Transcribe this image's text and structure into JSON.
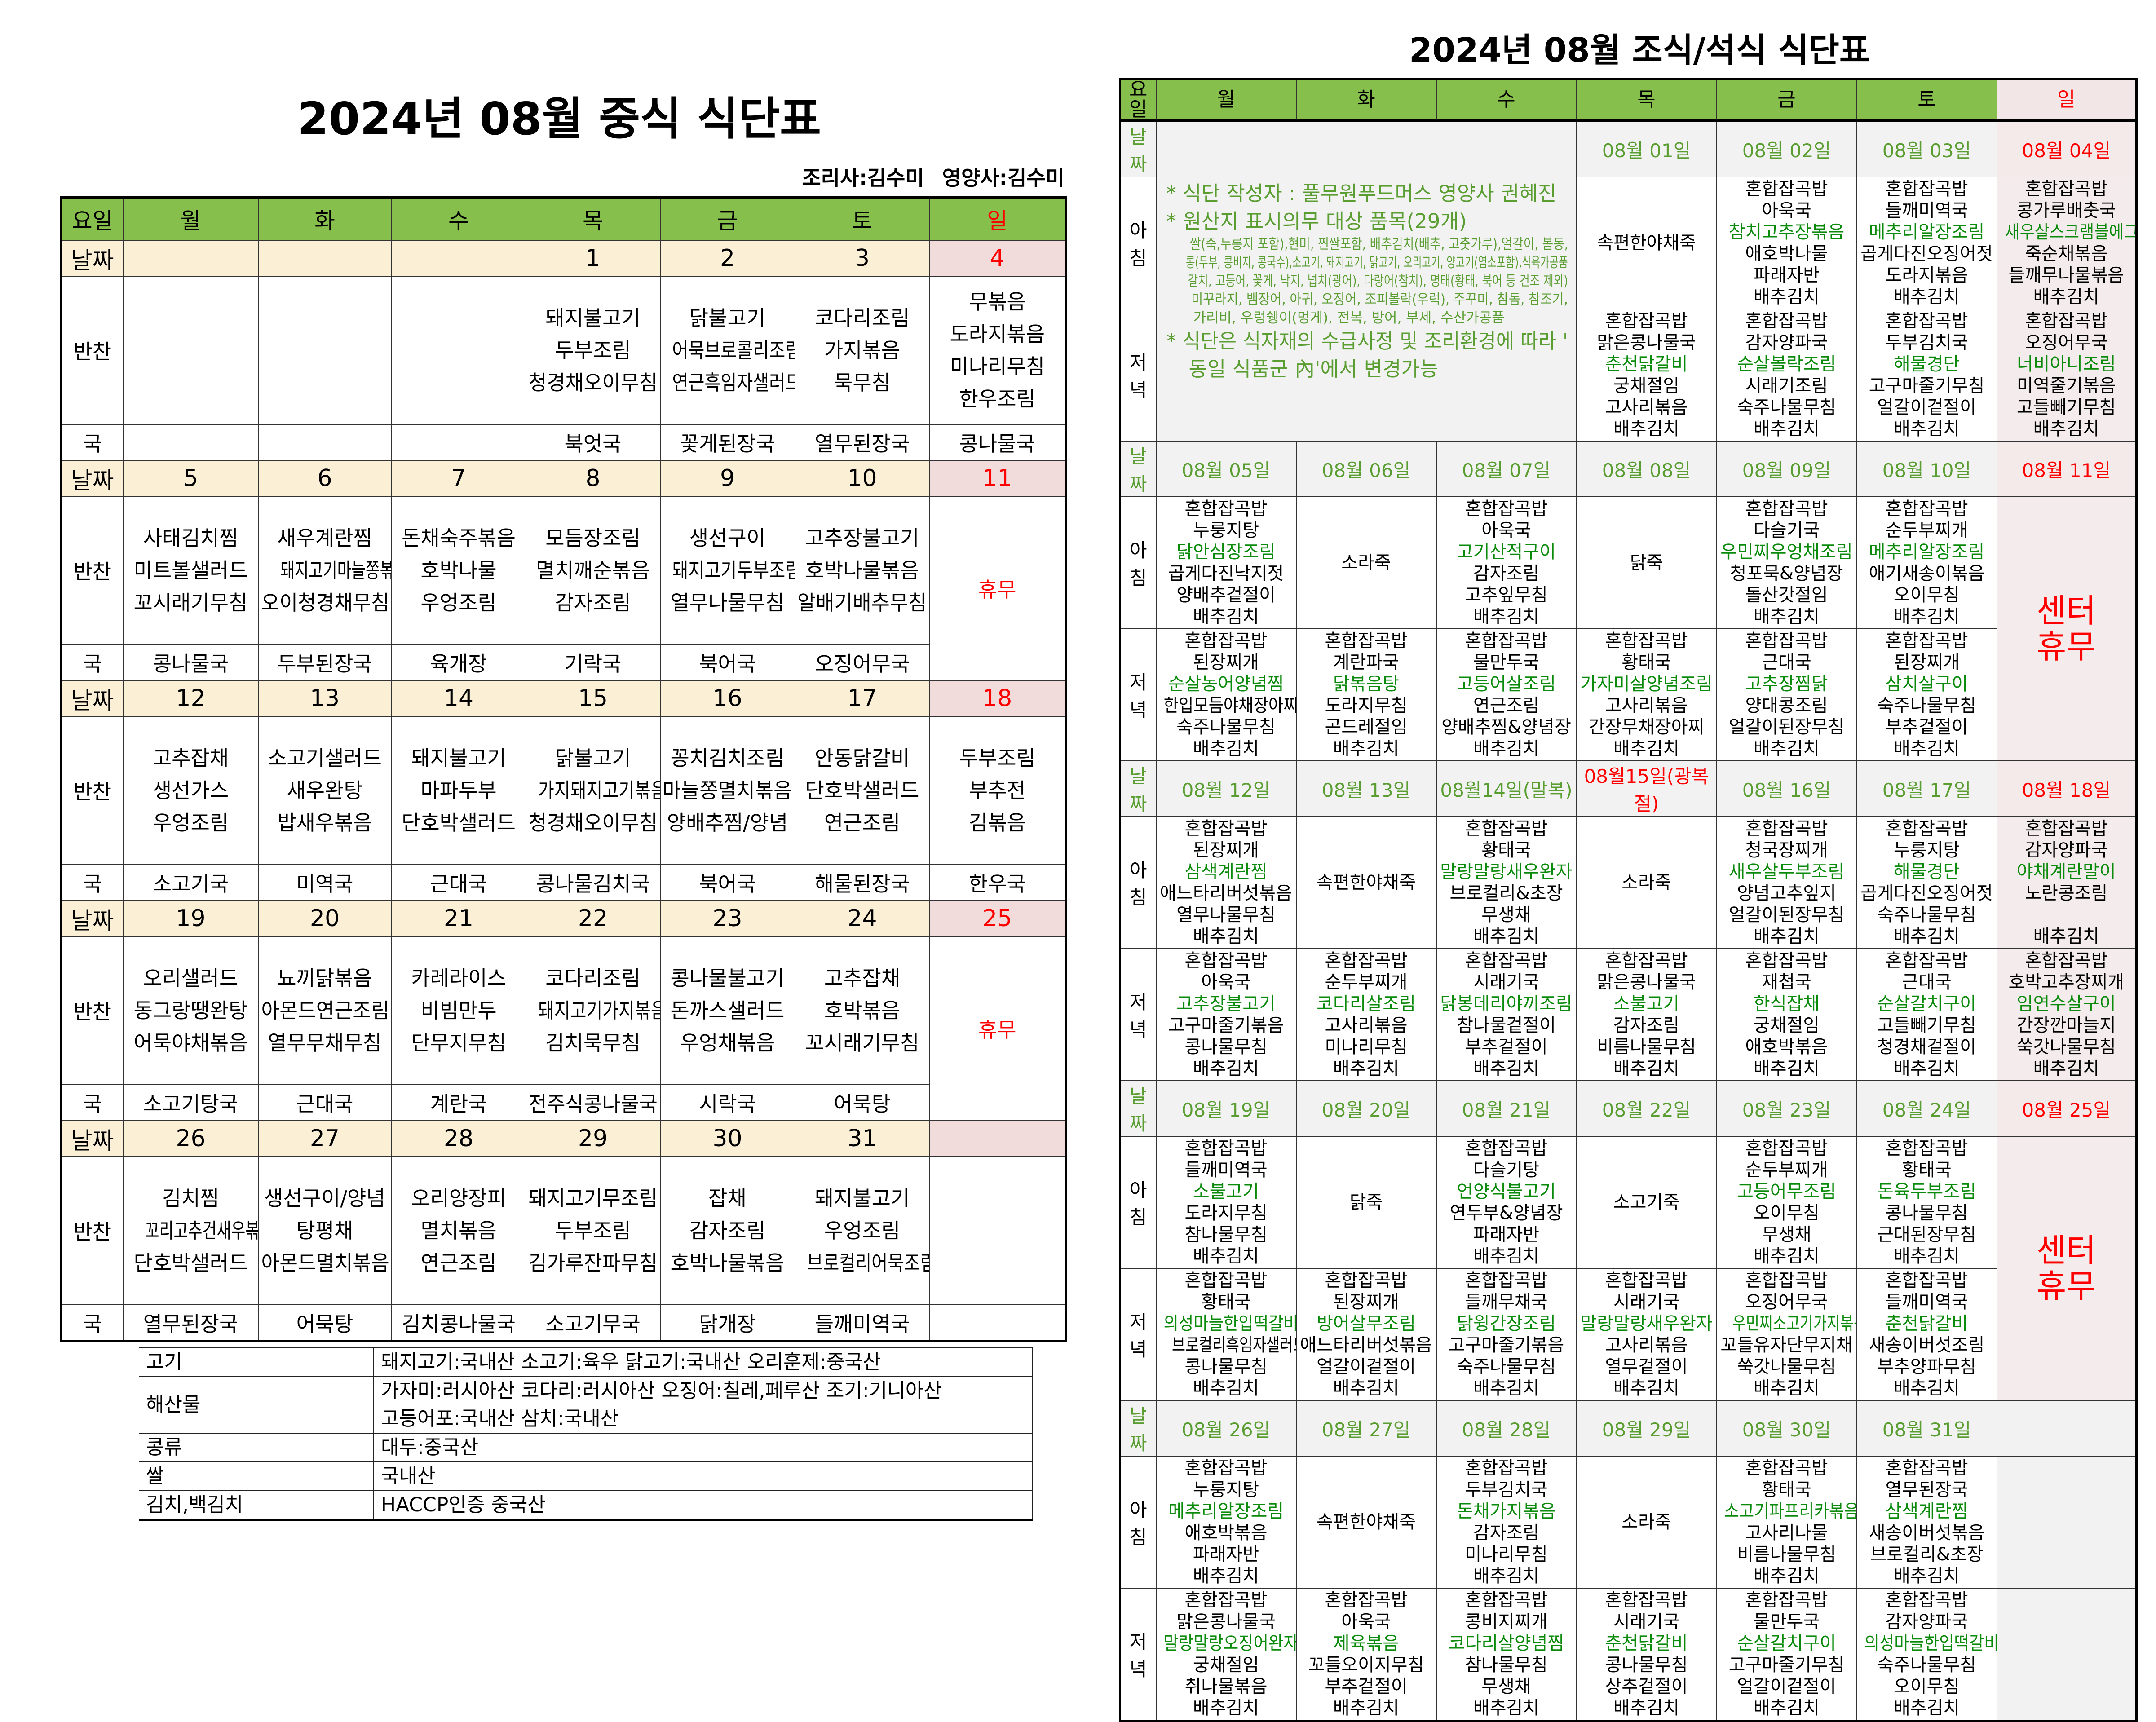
{
  "lunch": {
    "title": "2024년 08월 중식 식단표",
    "staff": {
      "cook": "조리사:김수미",
      "dietitian": "영양사:김수미"
    },
    "header": {
      "label": "요일",
      "days": [
        "월",
        "화",
        "수",
        "목",
        "금",
        "토",
        "일"
      ]
    },
    "row_labels": {
      "date": "날짜",
      "sides": "반찬",
      "soup": "국"
    },
    "holiday_text": "휴무",
    "weeks": [
      {
        "dates": [
          "",
          "",
          "",
          "1",
          "2",
          "3",
          "4"
        ],
        "sides": [
          [],
          [],
          [],
          [
            "돼지불고기",
            "두부조림",
            "청경채오이무침"
          ],
          [
            "닭불고기",
            "어묵브로콜리조림",
            "연근흑임자샐러드"
          ],
          [
            "코다리조림",
            "가지볶음",
            "묵무침"
          ],
          [
            "무볶음",
            "도라지볶음",
            "미나리무침",
            "한우조림"
          ]
        ],
        "soups": [
          "",
          "",
          "",
          "북엇국",
          "꽃게된장국",
          "열무된장국",
          "콩나물국"
        ],
        "holiday": false
      },
      {
        "dates": [
          "5",
          "6",
          "7",
          "8",
          "9",
          "10",
          "11"
        ],
        "sides": [
          [
            "사태김치찜",
            "미트볼샐러드",
            "꼬시래기무침"
          ],
          [
            "새우계란찜",
            "돼지고기마늘쫑볶음",
            "오이청경채무침"
          ],
          [
            "돈채숙주볶음",
            "호박나물",
            "우엉조림"
          ],
          [
            "모듬장조림",
            "멸치깨순볶음",
            "감자조림"
          ],
          [
            "생선구이",
            "돼지고기두부조림",
            "열무나물무침"
          ],
          [
            "고추장불고기",
            "호박나물볶음",
            "알배기배추무침"
          ],
          []
        ],
        "soups": [
          "콩나물국",
          "두부된장국",
          "육개장",
          "기락국",
          "북어국",
          "오징어무국",
          ""
        ],
        "holiday": true
      },
      {
        "dates": [
          "12",
          "13",
          "14",
          "15",
          "16",
          "17",
          "18"
        ],
        "sides": [
          [
            "고추잡채",
            "생선가스",
            "우엉조림"
          ],
          [
            "소고기샐러드",
            "새우완탕",
            "밥새우볶음"
          ],
          [
            "돼지불고기",
            "마파두부",
            "단호박샐러드"
          ],
          [
            "닭불고기",
            "가지돼지고기볶음",
            "청경채오이무침"
          ],
          [
            "꽁치김치조림",
            "마늘쫑멸치볶음",
            "양배추찜/양념"
          ],
          [
            "안동닭갈비",
            "단호박샐러드",
            "연근조림"
          ],
          [
            "두부조림",
            "부추전",
            "김볶음"
          ]
        ],
        "soups": [
          "소고기국",
          "미역국",
          "근대국",
          "콩나물김치국",
          "북어국",
          "해물된장국",
          "한우국"
        ],
        "holiday": false
      },
      {
        "dates": [
          "19",
          "20",
          "21",
          "22",
          "23",
          "24",
          "25"
        ],
        "sides": [
          [
            "오리샐러드",
            "동그랑땡완탕",
            "어묵야채볶음"
          ],
          [
            "뇨끼닭볶음",
            "아몬드연근조림",
            "열무무채무침"
          ],
          [
            "카레라이스",
            "비빔만두",
            "단무지무침"
          ],
          [
            "코다리조림",
            "돼지고기가지볶음",
            "김치묵무침"
          ],
          [
            "콩나물불고기",
            "돈까스샐러드",
            "우엉채볶음"
          ],
          [
            "고추잡채",
            "호박볶음",
            "꼬시래기무침"
          ],
          []
        ],
        "soups": [
          "소고기탕국",
          "근대국",
          "계란국",
          "전주식콩나물국",
          "시락국",
          "어묵탕",
          ""
        ],
        "holiday": true
      },
      {
        "dates": [
          "26",
          "27",
          "28",
          "29",
          "30",
          "31",
          ""
        ],
        "sides": [
          [
            "김치찜",
            "꼬리고추건새우볶음",
            "단호박샐러드"
          ],
          [
            "생선구이/양념",
            "탕평채",
            "아몬드멸치볶음"
          ],
          [
            "오리양장피",
            "멸치볶음",
            "연근조림"
          ],
          [
            "돼지고기무조림",
            "두부조림",
            "김가루잔파무침"
          ],
          [
            "잡채",
            "감자조림",
            "호박나물볶음"
          ],
          [
            "돼지불고기",
            "우엉조림",
            "브로컬리어묵조림"
          ],
          []
        ],
        "soups": [
          "열무된장국",
          "어묵탕",
          "김치콩나물국",
          "소고기무국",
          "닭개장",
          "들깨미역국",
          ""
        ],
        "holiday": false
      }
    ],
    "origin": [
      {
        "label": "고기",
        "lines": [
          "돼지고기:국내산  소고기:육우  닭고기:국내산  오리훈제:중국산"
        ]
      },
      {
        "label": "해산물",
        "lines": [
          "가자미:러시아산   코다리:러시아산   오징어:칠레,페루산   조기:기니아산",
          "고등어포:국내산  삼치:국내산"
        ]
      },
      {
        "label": "콩류",
        "lines": [
          "대두:중국산"
        ]
      },
      {
        "label": "쌀",
        "lines": [
          "국내산"
        ]
      },
      {
        "label": "김치,백김치",
        "lines": [
          "HACCP인증  중국산"
        ]
      }
    ]
  },
  "dinner": {
    "title": "2024년 08월 조식/석식 식단표",
    "header": {
      "label": "요일",
      "days": [
        "월",
        "화",
        "수",
        "목",
        "금",
        "토",
        "일"
      ]
    },
    "row_labels": {
      "date": "날짜",
      "breakfast": "아침",
      "dinner": "저녁"
    },
    "closed_text": [
      "센터",
      "휴무"
    ],
    "colors": {
      "header": "#86bf4c",
      "date": "#5a9e32",
      "main_dish": "#0a8a0a",
      "sunday": "#ff0000"
    },
    "notes": {
      "author": "* 식단 작성자 : 풀무원푸드머스 영양사 권혜진",
      "origin_title": "* 원산지 표시의무 대상 품목(29개)",
      "origin_items": [
        "쌀(죽,누룽지 포함),현미, 찐쌀포함, 배추김치(배추, 고춧가루),얼갈이, 봄동,",
        "콩(두부, 콩비지, 콩국수),소고기, 돼지고기, 닭고기, 오리고기, 양고기(염소포함),식육가공품",
        "갈치, 고등어, 꽃게, 낙지, 넙치(광어), 다랑어(참치), 명태(황태, 북어 등 건조 제외)",
        "미꾸라지, 뱀장어, 아귀, 오징어, 조피볼락(우럭), 주꾸미, 참돔, 참조기,",
        "가리비, 우렁쉥이(멍게), 전복, 방어, 부세, 수산가공품"
      ],
      "change": [
        "* 식단은 식자재의 수급사정 및 조리환경에 따라 '",
        "동일 식품군 內'에서 변경가능"
      ]
    },
    "weeks": [
      {
        "dates": [
          "",
          "",
          "",
          "08월 01일",
          "08월 02일",
          "08월 03일",
          "08월 04일"
        ],
        "closed": false,
        "notes_week": true,
        "breakfast": [
          [],
          [],
          [],
          [
            "속편한야채죽"
          ],
          [
            "혼합잡곡밥",
            "아욱국",
            "참치고추장볶음",
            "애호박나물",
            "파래자반",
            "배추김치"
          ],
          [
            "혼합잡곡밥",
            "들깨미역국",
            "메추리알장조림",
            "곱게다진오징어젓",
            "도라지볶음",
            "배추김치"
          ],
          [
            "혼합잡곡밥",
            "콩가루배춧국",
            "새우살스크램블에그",
            "죽순채볶음",
            "들깨무나물볶음",
            "배추김치"
          ]
        ],
        "dinner": [
          [],
          [],
          [],
          [
            "혼합잡곡밥",
            "맑은콩나물국",
            "춘천닭갈비",
            "궁채절임",
            "고사리볶음",
            "배추김치"
          ],
          [
            "혼합잡곡밥",
            "감자양파국",
            "순살볼락조림",
            "시래기조림",
            "숙주나물무침",
            "배추김치"
          ],
          [
            "혼합잡곡밥",
            "두부김치국",
            "해물경단",
            "고구마줄기무침",
            "얼갈이겉절이",
            "배추김치"
          ],
          [
            "혼합잡곡밥",
            "오징어무국",
            "너비아니조림",
            "미역줄기볶음",
            "고들빼기무침",
            "배추김치"
          ]
        ]
      },
      {
        "dates": [
          "08월 05일",
          "08월 06일",
          "08월 07일",
          "08월 08일",
          "08월 09일",
          "08월 10일",
          "08월 11일"
        ],
        "closed": true,
        "breakfast": [
          [
            "혼합잡곡밥",
            "누룽지탕",
            "닭안심장조림",
            "곱게다진낙지젓",
            "양배추겉절이",
            "배추김치"
          ],
          [
            "소라죽"
          ],
          [
            "혼합잡곡밥",
            "아욱국",
            "고기산적구이",
            "감자조림",
            "고추잎무침",
            "배추김치"
          ],
          [
            "닭죽"
          ],
          [
            "혼합잡곡밥",
            "다슬기국",
            "우민찌우엉채조림",
            "청포묵&양념장",
            "돌산갓절임",
            "배추김치"
          ],
          [
            "혼합잡곡밥",
            "순두부찌개",
            "메추리알장조림",
            "애기새송이볶음",
            "오이무침",
            "배추김치"
          ],
          []
        ],
        "dinner": [
          [
            "혼합잡곡밥",
            "된장찌개",
            "순살농어양념찜",
            "한입모듬야채장아찌",
            "숙주나물무침",
            "배추김치"
          ],
          [
            "혼합잡곡밥",
            "계란파국",
            "닭볶음탕",
            "도라지무침",
            "곤드레절임",
            "배추김치"
          ],
          [
            "혼합잡곡밥",
            "물만두국",
            "고등어살조림",
            "연근조림",
            "양배추찜&양념장",
            "배추김치"
          ],
          [
            "혼합잡곡밥",
            "황태국",
            "가자미살양념조림",
            "고사리볶음",
            "간장무채장아찌",
            "배추김치"
          ],
          [
            "혼합잡곡밥",
            "근대국",
            "고추장찜닭",
            "양대콩조림",
            "얼갈이된장무침",
            "배추김치"
          ],
          [
            "혼합잡곡밥",
            "된장찌개",
            "삼치살구이",
            "숙주나물무침",
            "부추겉절이",
            "배추김치"
          ],
          []
        ]
      },
      {
        "dates": [
          "08월 12일",
          "08월 13일",
          "08월14일(말복)",
          "08월15일(광복절)",
          "08월 16일",
          "08월 17일",
          "08월 18일"
        ],
        "closed": false,
        "holiday_index": 3,
        "breakfast": [
          [
            "혼합잡곡밥",
            "된장찌개",
            "삼색계란찜",
            "애느타리버섯볶음",
            "열무나물무침",
            "배추김치"
          ],
          [
            "속편한야채죽"
          ],
          [
            "혼합잡곡밥",
            "황태국",
            "말랑말랑새우완자",
            "브로컬리&초장",
            "무생채",
            "배추김치"
          ],
          [
            "소라죽"
          ],
          [
            "혼합잡곡밥",
            "청국장찌개",
            "새우살두부조림",
            "양념고추잎지",
            "얼갈이된장무침",
            "배추김치"
          ],
          [
            "혼합잡곡밥",
            "누룽지탕",
            "해물경단",
            "곱게다진오징어젓",
            "숙주나물무침",
            "배추김치"
          ],
          [
            "혼합잡곡밥",
            "감자양파국",
            "야채계란말이",
            "노란콩조림",
            "",
            "배추김치"
          ]
        ],
        "dinner": [
          [
            "혼합잡곡밥",
            "아욱국",
            "고추장불고기",
            "고구마줄기볶음",
            "콩나물무침",
            "배추김치"
          ],
          [
            "혼합잡곡밥",
            "순두부찌개",
            "코다리살조림",
            "고사리볶음",
            "미나리무침",
            "배추김치"
          ],
          [
            "혼합잡곡밥",
            "시래기국",
            "닭봉데리야끼조림",
            "참나물겉절이",
            "부추겉절이",
            "배추김치"
          ],
          [
            "혼합잡곡밥",
            "맑은콩나물국",
            "소불고기",
            "감자조림",
            "비름나물무침",
            "배추김치"
          ],
          [
            "혼합잡곡밥",
            "재첩국",
            "한식잡채",
            "궁채절임",
            "애호박볶음",
            "배추김치"
          ],
          [
            "혼합잡곡밥",
            "근대국",
            "순살갈치구이",
            "고들빼기무침",
            "청경채겉절이",
            "배추김치"
          ],
          [
            "혼합잡곡밥",
            "호박고추장찌개",
            "임연수살구이",
            "간장깐마늘지",
            "쑥갓나물무침",
            "배추김치"
          ]
        ]
      },
      {
        "dates": [
          "08월 19일",
          "08월 20일",
          "08월 21일",
          "08월 22일",
          "08월 23일",
          "08월 24일",
          "08월 25일"
        ],
        "closed": true,
        "breakfast": [
          [
            "혼합잡곡밥",
            "들깨미역국",
            "소불고기",
            "도라지무침",
            "참나물무침",
            "배추김치"
          ],
          [
            "닭죽"
          ],
          [
            "혼합잡곡밥",
            "다슬기탕",
            "언양식불고기",
            "연두부&양념장",
            "파래자반",
            "배추김치"
          ],
          [
            "소고기죽"
          ],
          [
            "혼합잡곡밥",
            "순두부찌개",
            "고등어무조림",
            "오이무침",
            "무생채",
            "배추김치"
          ],
          [
            "혼합잡곡밥",
            "황태국",
            "돈육두부조림",
            "콩나물무침",
            "근대된장무침",
            "배추김치"
          ],
          []
        ],
        "dinner": [
          [
            "혼합잡곡밥",
            "황태국",
            "의성마늘한입떡갈비",
            "브로컬리흑임자샐러드",
            "콩나물무침",
            "배추김치"
          ],
          [
            "혼합잡곡밥",
            "된장찌개",
            "방어살무조림",
            "애느타리버섯볶음",
            "얼갈이겉절이",
            "배추김치"
          ],
          [
            "혼합잡곡밥",
            "들깨무채국",
            "닭윙간장조림",
            "고구마줄기볶음",
            "숙주나물무침",
            "배추김치"
          ],
          [
            "혼합잡곡밥",
            "시래기국",
            "말랑말랑새우완자",
            "고사리볶음",
            "열무겉절이",
            "배추김치"
          ],
          [
            "혼합잡곡밥",
            "오징어무국",
            "우민찌소고기가지볶음",
            "꼬들유자단무지채",
            "쑥갓나물무침",
            "배추김치"
          ],
          [
            "혼합잡곡밥",
            "들깨미역국",
            "춘천닭갈비",
            "새송이버섯조림",
            "부추양파무침",
            "배추김치"
          ],
          []
        ]
      },
      {
        "dates": [
          "08월 26일",
          "08월 27일",
          "08월 28일",
          "08월 29일",
          "08월 30일",
          "08월 31일",
          ""
        ],
        "closed": false,
        "empty_sunday": true,
        "breakfast": [
          [
            "혼합잡곡밥",
            "누룽지탕",
            "메추리알장조림",
            "애호박볶음",
            "파래자반",
            "배추김치"
          ],
          [
            "속편한야채죽"
          ],
          [
            "혼합잡곡밥",
            "두부김치국",
            "돈채가지볶음",
            "감자조림",
            "미나리무침",
            "배추김치"
          ],
          [
            "소라죽"
          ],
          [
            "혼합잡곡밥",
            "황태국",
            "소고기파프리카볶음",
            "고사리나물",
            "비름나물무침",
            "배추김치"
          ],
          [
            "혼합잡곡밥",
            "열무된장국",
            "삼색계란찜",
            "새송이버섯볶음",
            "브로컬리&초장",
            "배추김치"
          ],
          []
        ],
        "dinner": [
          [
            "혼합잡곡밥",
            "맑은콩나물국",
            "말랑말랑오징어완자",
            "궁채절임",
            "취나물볶음",
            "배추김치"
          ],
          [
            "혼합잡곡밥",
            "아욱국",
            "제육볶음",
            "꼬들오이지무침",
            "부추겉절이",
            "배추김치"
          ],
          [
            "혼합잡곡밥",
            "콩비지찌개",
            "코다리살양념찜",
            "참나물무침",
            "무생채",
            "배추김치"
          ],
          [
            "혼합잡곡밥",
            "시래기국",
            "춘천닭갈비",
            "콩나물무침",
            "상추겉절이",
            "배추김치"
          ],
          [
            "혼합잡곡밥",
            "물만두국",
            "순살갈치구이",
            "고구마줄기무침",
            "얼갈이겉절이",
            "배추김치"
          ],
          [
            "혼합잡곡밥",
            "감자양파국",
            "의성마늘한입떡갈비",
            "숙주나물무침",
            "오이무침",
            "배추김치"
          ],
          []
        ]
      }
    ]
  }
}
